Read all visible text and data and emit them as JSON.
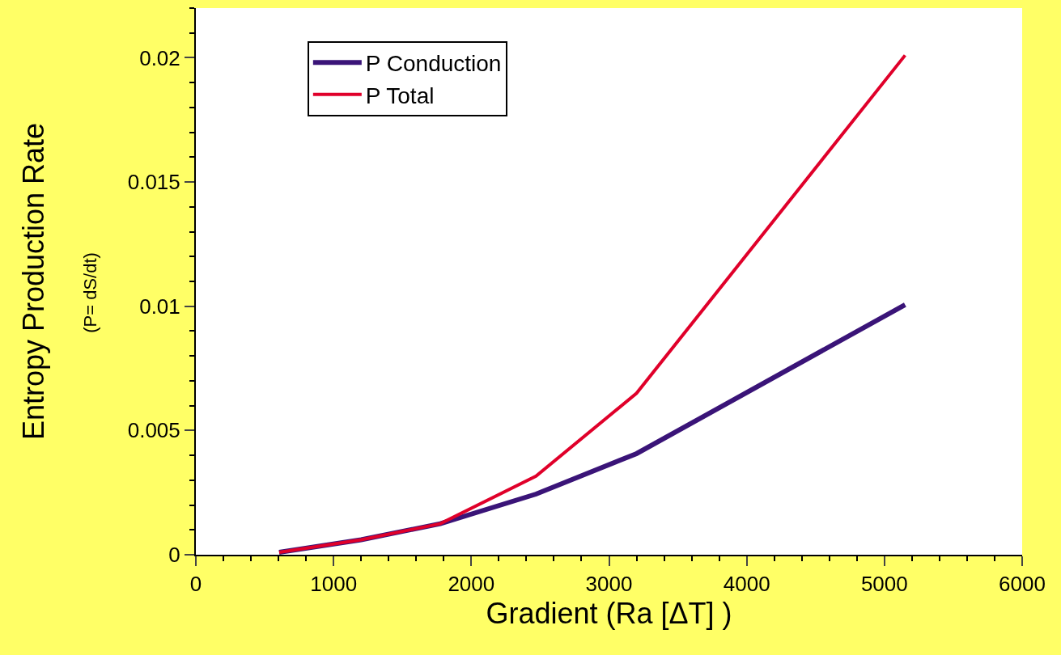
{
  "chart_data": {
    "type": "line",
    "xlabel": "Gradient (Ra [ΔT] )",
    "ylabel": "Entropy Production Rate",
    "annotations": [
      "(P= dS/dt)"
    ],
    "x": [
      605,
      1200,
      1775,
      2470,
      3200,
      5150
    ],
    "series": [
      {
        "name": "P Conduction",
        "color": "#3a1478",
        "values": [
          0.0001,
          0.0006,
          0.00125,
          0.00244,
          0.00407,
          0.01006
        ]
      },
      {
        "name": "P Total",
        "color": "#e0002a",
        "values": [
          0.0001,
          0.0006,
          0.00125,
          0.00316,
          0.0065,
          0.0201
        ]
      }
    ],
    "xlim": [
      0,
      6000
    ],
    "xticks": [
      0,
      1000,
      2000,
      3000,
      4000,
      5000,
      6000
    ],
    "ylim": [
      0,
      0.022
    ],
    "yticks": [
      0,
      0.005,
      0.01,
      0.015,
      0.02
    ],
    "grid": false,
    "legend": "top left",
    "marker": "none",
    "line_style": "solid"
  }
}
